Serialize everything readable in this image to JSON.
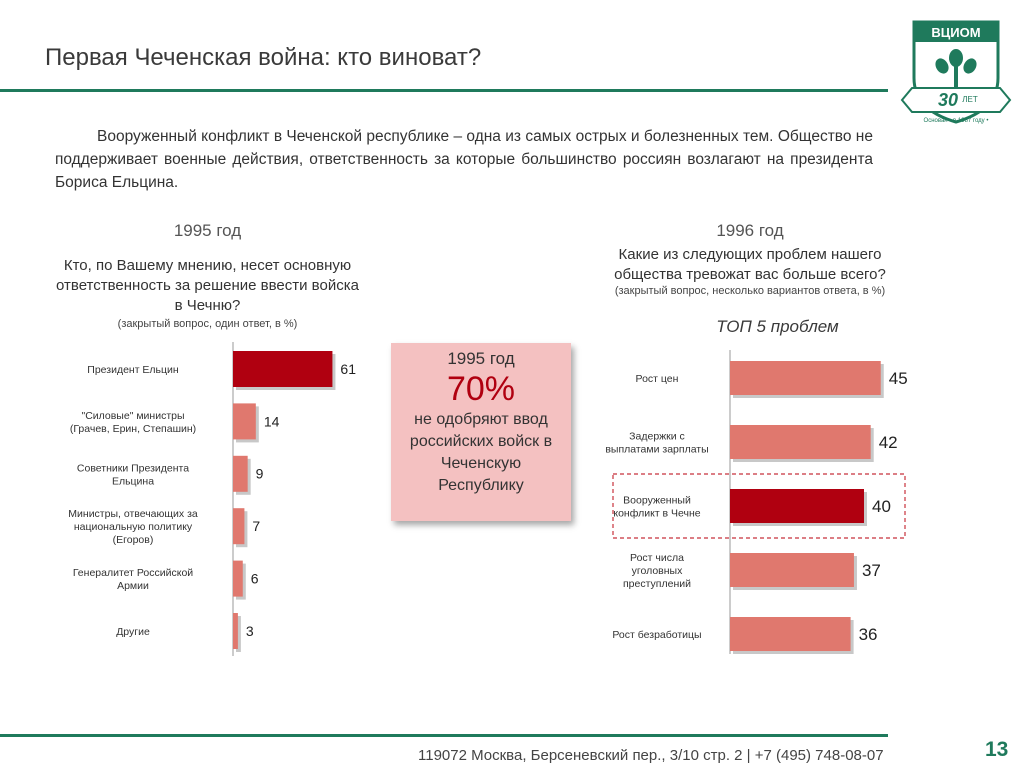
{
  "header": {
    "title": "Первая Чеченская война: кто виноват?",
    "logo_name": "ВЦИОМ",
    "logo_years": "30",
    "logo_years_label": "ЛЕТ",
    "logo_tagline": "Основан • в 1987 году •"
  },
  "intro": "Вооруженный конфликт в Чеченской республике – одна из самых острых и болезненных тем. Общество не поддерживает военные действия, ответственность за которые большинство россиян возлагают на президента Бориса Ельцина.",
  "left": {
    "year": "1995 год",
    "question": "Кто, по Вашему мнению, несет основную ответственность за решение ввести войска в Чечню?",
    "note": "(закрытый вопрос, один ответ, в %)"
  },
  "right": {
    "year": "1996 год",
    "question": "Какие из следующих проблем нашего общества тревожат вас больше всего?",
    "note": "(закрытый вопрос, несколько вариантов ответа, в %)",
    "subtitle": "ТОП 5 проблем"
  },
  "callout": {
    "year": "1995 год",
    "percent": "70%",
    "text": "не одобряют ввод российских войск в Чеченскую Республику"
  },
  "footer": {
    "address": "119072 Москва, Берсеневский пер., 3/10 стр. 2  |  +7 (495) 748-08-07",
    "page_number": "13"
  },
  "colors": {
    "accent_green": "#1f7a5c",
    "highlight_bar": "#b00010",
    "bar": "#e0786e",
    "callout_bg": "#f4c1c1",
    "highlight_box": "#c8323c"
  },
  "chart_data": [
    {
      "type": "bar",
      "orientation": "horizontal",
      "categories": [
        "Президент Ельцин",
        "\"Силовые\" министры (Грачев, Ерин, Степашин)",
        "Советники Президента Ельцина",
        "Министры, отвечающих за национальную политику (Егоров)",
        "Генералитет Российской Армии",
        "Другие"
      ],
      "values": [
        61,
        14,
        9,
        7,
        6,
        3
      ],
      "highlight_index": 0,
      "xlim": [
        0,
        100
      ]
    },
    {
      "type": "bar",
      "orientation": "horizontal",
      "categories": [
        "Рост цен",
        "Задержки с выплатами зарплаты",
        "Вооруженный конфликт в Чечне",
        "Рост числа уголовных преступлений",
        "Рост безработицы"
      ],
      "values": [
        45,
        42,
        40,
        37,
        36
      ],
      "highlight_index": 2,
      "xlim": [
        0,
        100
      ]
    }
  ]
}
